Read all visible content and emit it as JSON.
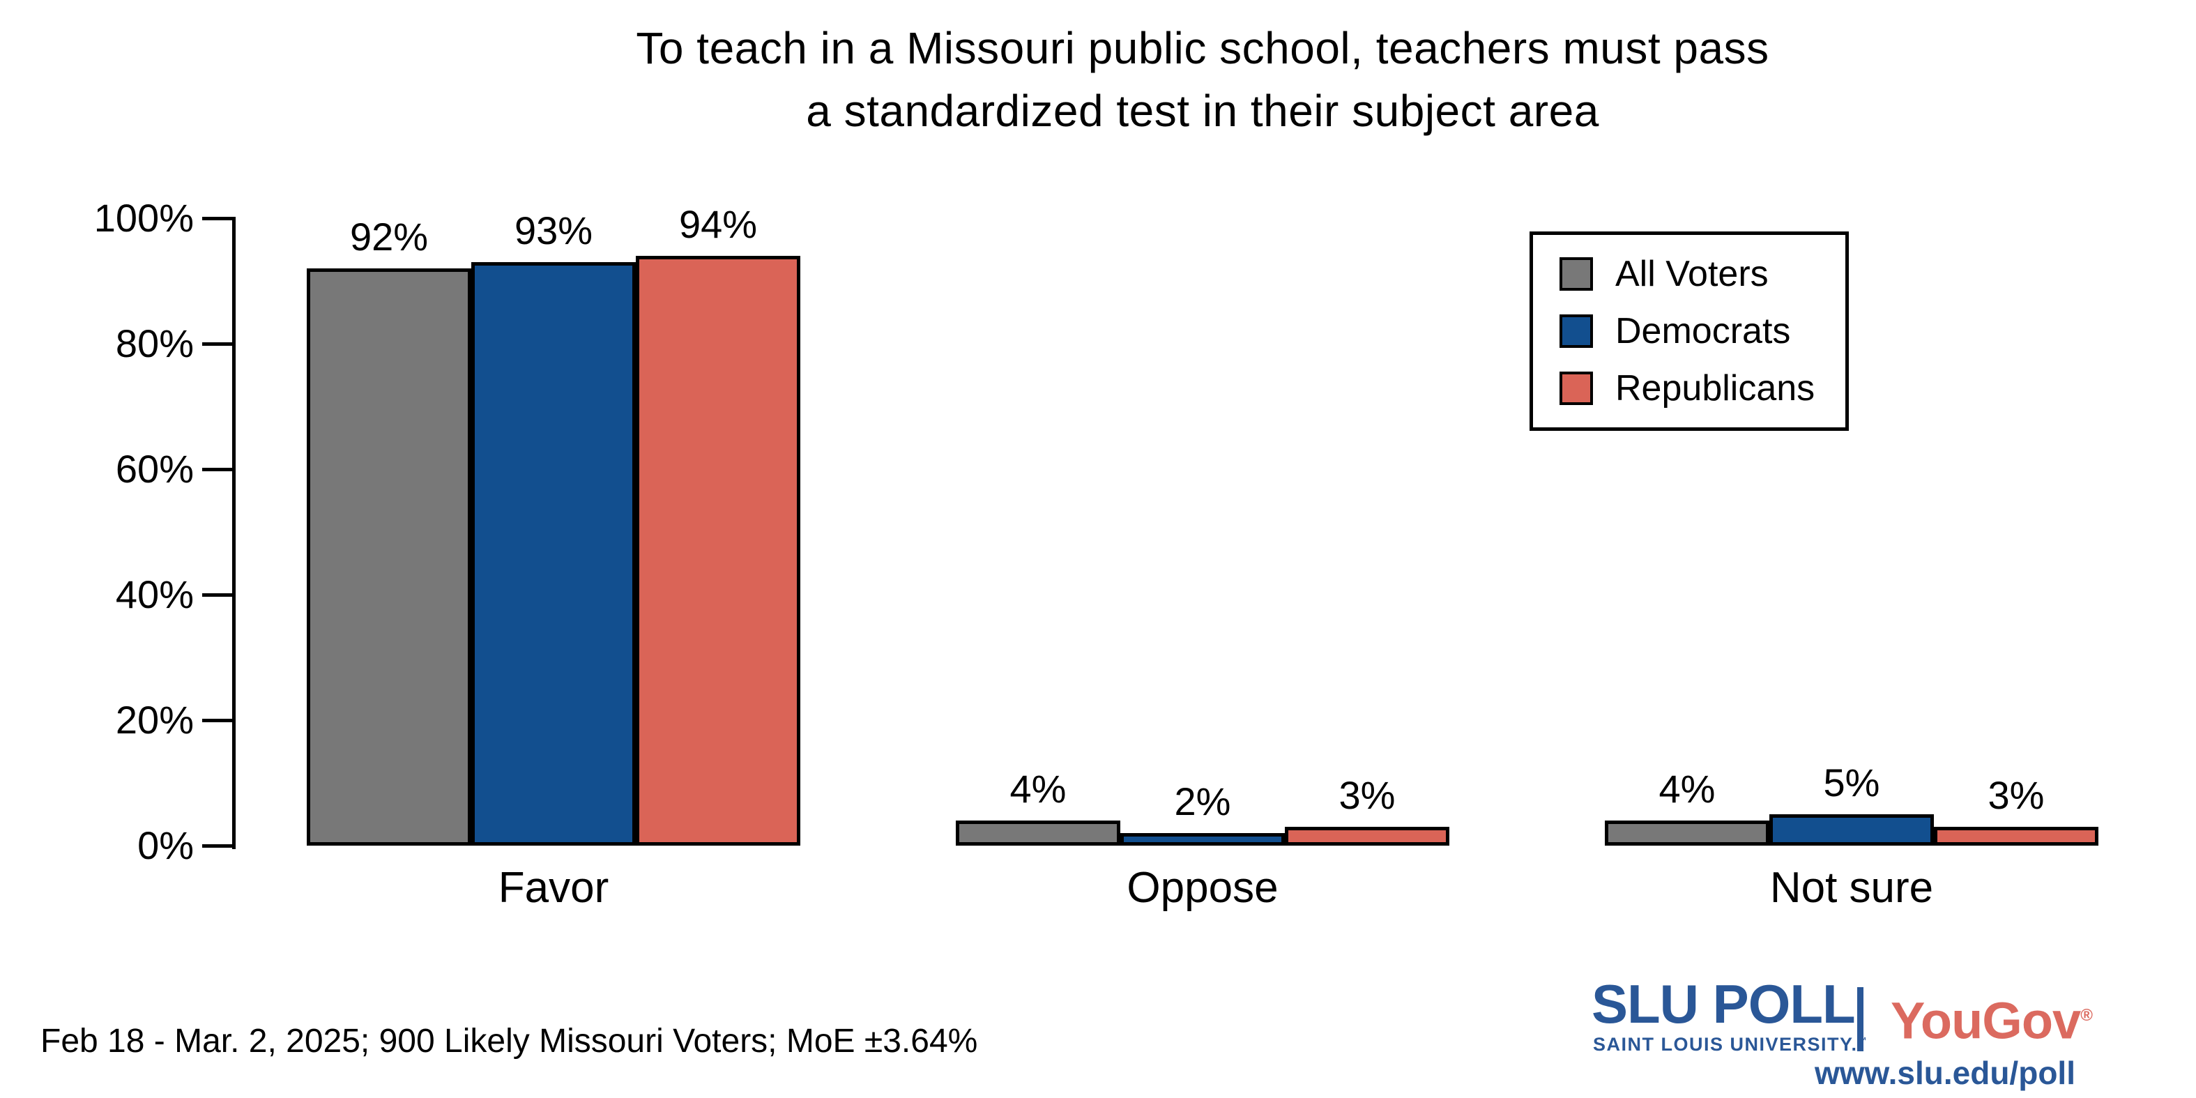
{
  "title": {
    "line1": "To teach in a Missouri public school, teachers must pass",
    "line2": "a standardized test in their subject area"
  },
  "chart_data": {
    "type": "bar",
    "categories": [
      "Favor",
      "Oppose",
      "Not sure"
    ],
    "series": [
      {
        "name": "All Voters",
        "color": "#787878",
        "values": [
          92,
          4,
          4
        ]
      },
      {
        "name": "Democrats",
        "color": "#124F8F",
        "values": [
          93,
          2,
          5
        ]
      },
      {
        "name": "Republicans",
        "color": "#DA6457",
        "values": [
          94,
          3,
          3
        ]
      }
    ],
    "value_labels": [
      [
        "92%",
        "93%",
        "94%"
      ],
      [
        "4%",
        "2%",
        "3%"
      ],
      [
        "4%",
        "5%",
        "3%"
      ]
    ],
    "xlabel": "",
    "ylabel": "",
    "ylim": [
      0,
      100
    ],
    "yticks": [
      0,
      20,
      40,
      60,
      80,
      100
    ],
    "ytick_labels": [
      "0%",
      "20%",
      "40%",
      "60%",
      "80%",
      "100%"
    ],
    "grid": false,
    "bar_edge_color": "#000000",
    "legend_position": "upper right"
  },
  "legend": {
    "items": [
      {
        "label": "All Voters",
        "color": "#787878"
      },
      {
        "label": "Democrats",
        "color": "#124F8F"
      },
      {
        "label": "Republicans",
        "color": "#DA6457"
      }
    ]
  },
  "footer": {
    "note": "Feb 18 - Mar. 2, 2025; 900 Likely Missouri Voters; MoE ±3.64%"
  },
  "branding": {
    "slu_name": "SLU POLL",
    "slu_subtitle": "SAINT LOUIS UNIVERSITY.",
    "slu_trademark": "™",
    "divider": "|",
    "partner_name": "YouGov",
    "partner_registered": "®",
    "url": "www.slu.edu/poll",
    "slu_color": "#2A5797",
    "partner_color": "#DB6A5F"
  }
}
